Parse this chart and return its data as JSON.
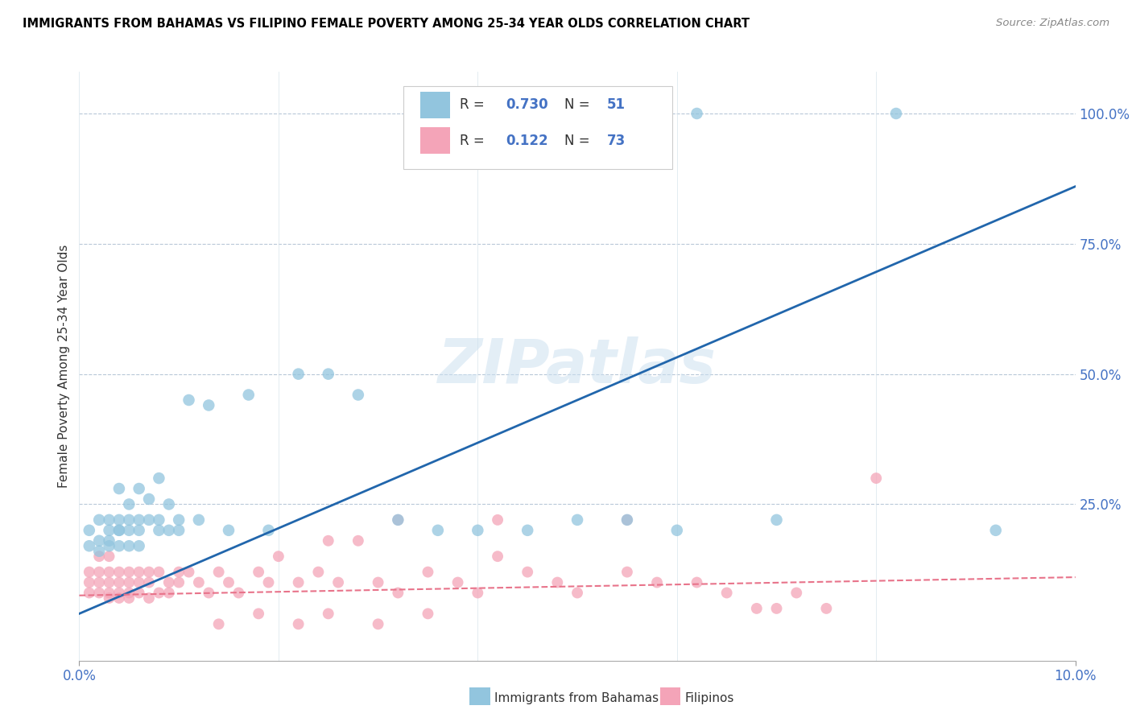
{
  "title": "IMMIGRANTS FROM BAHAMAS VS FILIPINO FEMALE POVERTY AMONG 25-34 YEAR OLDS CORRELATION CHART",
  "source": "Source: ZipAtlas.com",
  "ylabel": "Female Poverty Among 25-34 Year Olds",
  "ylabel_right_ticks": [
    "100.0%",
    "75.0%",
    "50.0%",
    "25.0%"
  ],
  "ylabel_right_vals": [
    1.0,
    0.75,
    0.5,
    0.25
  ],
  "bahamas_color": "#92c5de",
  "filipino_color": "#f4a4b8",
  "regression_bahamas_color": "#2166ac",
  "regression_filipino_color": "#e8738a",
  "watermark": "ZIPatlas",
  "xlim": [
    0.0,
    0.1
  ],
  "ylim": [
    -0.05,
    1.08
  ],
  "bahamas_x": [
    0.001,
    0.001,
    0.002,
    0.002,
    0.002,
    0.003,
    0.003,
    0.003,
    0.003,
    0.004,
    0.004,
    0.004,
    0.004,
    0.004,
    0.005,
    0.005,
    0.005,
    0.005,
    0.006,
    0.006,
    0.006,
    0.006,
    0.007,
    0.007,
    0.008,
    0.008,
    0.008,
    0.009,
    0.009,
    0.01,
    0.01,
    0.011,
    0.012,
    0.013,
    0.015,
    0.017,
    0.019,
    0.022,
    0.025,
    0.028,
    0.032,
    0.036,
    0.04,
    0.045,
    0.05,
    0.055,
    0.06,
    0.07,
    0.082,
    0.092,
    0.062
  ],
  "bahamas_y": [
    0.17,
    0.2,
    0.18,
    0.22,
    0.16,
    0.2,
    0.22,
    0.18,
    0.17,
    0.22,
    0.2,
    0.28,
    0.17,
    0.2,
    0.22,
    0.25,
    0.2,
    0.17,
    0.28,
    0.22,
    0.2,
    0.17,
    0.26,
    0.22,
    0.3,
    0.22,
    0.2,
    0.25,
    0.2,
    0.22,
    0.2,
    0.45,
    0.22,
    0.44,
    0.2,
    0.46,
    0.2,
    0.5,
    0.5,
    0.46,
    0.22,
    0.2,
    0.2,
    0.2,
    0.22,
    0.22,
    0.2,
    0.22,
    1.0,
    0.2,
    1.0
  ],
  "filipino_x": [
    0.001,
    0.001,
    0.001,
    0.002,
    0.002,
    0.002,
    0.002,
    0.003,
    0.003,
    0.003,
    0.003,
    0.003,
    0.004,
    0.004,
    0.004,
    0.004,
    0.005,
    0.005,
    0.005,
    0.005,
    0.006,
    0.006,
    0.006,
    0.007,
    0.007,
    0.007,
    0.008,
    0.008,
    0.009,
    0.009,
    0.01,
    0.01,
    0.011,
    0.012,
    0.013,
    0.014,
    0.015,
    0.016,
    0.018,
    0.019,
    0.02,
    0.022,
    0.024,
    0.025,
    0.026,
    0.028,
    0.03,
    0.032,
    0.035,
    0.038,
    0.04,
    0.042,
    0.045,
    0.048,
    0.05,
    0.055,
    0.058,
    0.062,
    0.065,
    0.068,
    0.072,
    0.075,
    0.08,
    0.032,
    0.014,
    0.018,
    0.022,
    0.025,
    0.03,
    0.035,
    0.042,
    0.055,
    0.07
  ],
  "filipino_y": [
    0.12,
    0.1,
    0.08,
    0.15,
    0.12,
    0.1,
    0.08,
    0.15,
    0.1,
    0.08,
    0.12,
    0.07,
    0.12,
    0.1,
    0.08,
    0.07,
    0.12,
    0.1,
    0.08,
    0.07,
    0.12,
    0.1,
    0.08,
    0.12,
    0.1,
    0.07,
    0.12,
    0.08,
    0.1,
    0.08,
    0.12,
    0.1,
    0.12,
    0.1,
    0.08,
    0.12,
    0.1,
    0.08,
    0.12,
    0.1,
    0.15,
    0.1,
    0.12,
    0.18,
    0.1,
    0.18,
    0.1,
    0.08,
    0.12,
    0.1,
    0.08,
    0.15,
    0.12,
    0.1,
    0.08,
    0.12,
    0.1,
    0.1,
    0.08,
    0.05,
    0.08,
    0.05,
    0.3,
    0.22,
    0.02,
    0.04,
    0.02,
    0.04,
    0.02,
    0.04,
    0.22,
    0.22,
    0.05
  ],
  "regression_bahamas_x0": 0.0,
  "regression_bahamas_y0": 0.04,
  "regression_bahamas_x1": 0.1,
  "regression_bahamas_y1": 0.86,
  "regression_filipino_x0": 0.0,
  "regression_filipino_y0": 0.075,
  "regression_filipino_x1": 0.1,
  "regression_filipino_y1": 0.11
}
